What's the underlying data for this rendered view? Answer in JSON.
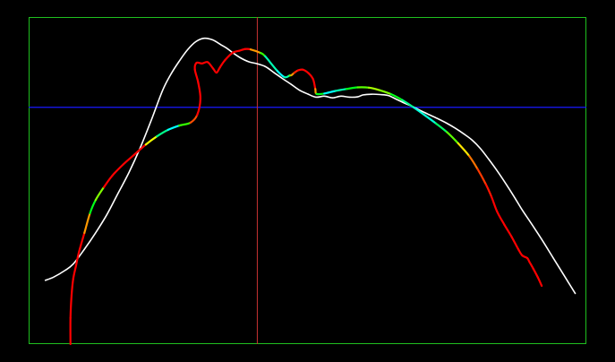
{
  "chart_data": {
    "type": "line",
    "title": "",
    "xlabel": "",
    "ylabel": "",
    "xlim": [
      0,
      100
    ],
    "ylim": [
      0,
      100
    ],
    "grid": false,
    "legend": "none",
    "colors": {
      "background": "#000000",
      "frame": "#1fbf1f",
      "reference_horizontal": "#1a1aff",
      "reference_vertical": "#c83232",
      "reference_curve": "#ffffff",
      "fit_gradient": [
        "#ff0000",
        "#ffff00",
        "#00ff00",
        "#00ffff"
      ]
    },
    "reference_lines": {
      "horizontal_y": 72.4,
      "vertical_x": 41.0
    },
    "series": [
      {
        "kind": "reference",
        "x": [
          3,
          4.5,
          6.5,
          8,
          10,
          12,
          14,
          16,
          18,
          20,
          22,
          24,
          25.5,
          27,
          28.5,
          30,
          31.5,
          33,
          34.5,
          35.5,
          36.5,
          38,
          39.5,
          41,
          42.5,
          44,
          45.5,
          47,
          48.5,
          50,
          51.5,
          53,
          54.5,
          56,
          57.5,
          59,
          60,
          61.5,
          63,
          64.5,
          66,
          67.5,
          69,
          70.5,
          72,
          73.5,
          75,
          76.5,
          78,
          79.5,
          81,
          82.5,
          84,
          85.5,
          87,
          88.5,
          90,
          92,
          94,
          96,
          98
        ],
        "y": [
          19.5,
          20.5,
          22.5,
          24.5,
          29,
          34,
          39.5,
          46,
          52.5,
          60,
          68.5,
          77.5,
          82.5,
          86.5,
          90,
          92.5,
          93.5,
          93,
          91.5,
          90.5,
          89.2,
          87.5,
          86.3,
          85.7,
          84.8,
          83,
          81.2,
          79.5,
          77.7,
          76.5,
          75.5,
          75.8,
          75.3,
          75.8,
          75.5,
          75.6,
          76.2,
          76.4,
          76.3,
          76,
          74.8,
          73.6,
          72.5,
          71.2,
          70,
          68.8,
          67.5,
          66,
          64.3,
          62.4,
          59.8,
          56.5,
          53,
          49.2,
          45.2,
          41,
          37.2,
          32,
          26.5,
          21,
          15.5
        ]
      },
      {
        "kind": "fit",
        "x": [
          7.5,
          7.5,
          7.7,
          8,
          8.5,
          9,
          10,
          11,
          12,
          13.5,
          15,
          17,
          19,
          21,
          23,
          25,
          27,
          29,
          30.2,
          30.8,
          30.4,
          29.8,
          30.1,
          31.1,
          32.1,
          33.1,
          33.7,
          34.3,
          35.2,
          36.6,
          37.8,
          38.8,
          39.8,
          41.6,
          42.4,
          44.6,
          45.9,
          46.8,
          47.1,
          47.6,
          48.3,
          49.2,
          50.2,
          51,
          51.4,
          51.6,
          53,
          55,
          57,
          59,
          61,
          63,
          65,
          67,
          69,
          71,
          73,
          75,
          77,
          79,
          80.5,
          82,
          83,
          84,
          85.3,
          86.6,
          87.8,
          88.5,
          89.4,
          89.8,
          90.5,
          91.3,
          92
        ],
        "y": [
          0,
          8,
          15,
          20,
          24,
          28,
          34,
          40,
          44,
          48,
          51.5,
          55,
          58,
          61,
          63.5,
          65.5,
          66.8,
          67.7,
          70,
          75,
          80,
          84,
          86,
          85.8,
          86.2,
          84.2,
          83,
          84.6,
          86.8,
          89.1,
          89.7,
          90.2,
          90.1,
          89,
          88,
          83.5,
          81.6,
          82.1,
          82.2,
          82.9,
          83.7,
          83.9,
          82.8,
          81,
          78,
          76.5,
          76.6,
          77.4,
          78,
          78.5,
          78.4,
          77.6,
          76.4,
          74.6,
          72.4,
          70,
          67.5,
          64.8,
          61.4,
          57.5,
          53.5,
          48.8,
          45,
          40.5,
          36.5,
          32.8,
          29,
          27.1,
          26.3,
          25.1,
          23,
          20.4,
          17.8
        ],
        "fit_quality": [
          0,
          0,
          0,
          0,
          0,
          0,
          0,
          0.4,
          1,
          0,
          0,
          0,
          0,
          0,
          0.7,
          1,
          1,
          0.2,
          0,
          0,
          0,
          0,
          0,
          0,
          0,
          0,
          0,
          0,
          0,
          0,
          0,
          0,
          0,
          0.4,
          0.8,
          1,
          1,
          0.8,
          0.3,
          0.1,
          0,
          0,
          0,
          0,
          0,
          0.4,
          1,
          1,
          0.8,
          0.6,
          0.5,
          0.4,
          0.6,
          0.8,
          0.9,
          1,
          0.9,
          0.7,
          0.4,
          0.2,
          0.1,
          0.05,
          0,
          0,
          0,
          0,
          0,
          0,
          0,
          0,
          0,
          0,
          0
        ]
      }
    ]
  }
}
